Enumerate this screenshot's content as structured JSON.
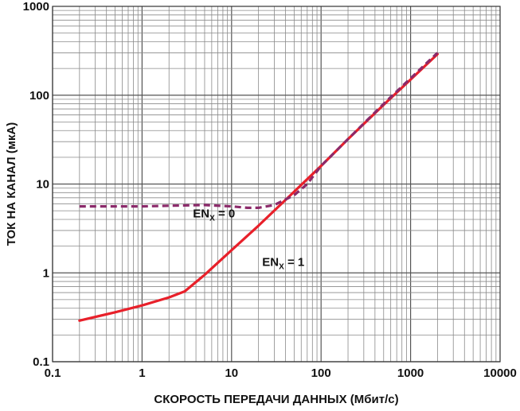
{
  "chart_data": {
    "type": "line",
    "xscale": "log",
    "yscale": "log",
    "xlim": [
      0.1,
      10000
    ],
    "ylim": [
      0.1,
      1000
    ],
    "grid": true,
    "xlabel": "СКОРОСТЬ ПЕРЕДАЧИ ДАННЫХ (Мбит/с)",
    "ylabel": "ТОК НА КАНАЛ (мкА)",
    "xticks": [
      0.1,
      1,
      10,
      100,
      1000,
      10000
    ],
    "xtick_labels": [
      "0.1",
      "1",
      "10",
      "100",
      "1000",
      "10000"
    ],
    "yticks": [
      0.1,
      1,
      10,
      100,
      1000
    ],
    "ytick_labels": [
      "0.1",
      "1",
      "10",
      "100",
      "1000"
    ],
    "series": [
      {
        "name": "EN_X = 1",
        "color": "#e8202a",
        "style": "solid",
        "x": [
          0.2,
          0.5,
          1,
          2,
          3,
          5,
          10,
          20,
          50,
          100,
          200,
          500,
          1000,
          2000
        ],
        "y": [
          0.29,
          0.36,
          0.43,
          0.53,
          0.62,
          0.95,
          1.8,
          3.4,
          8.2,
          16,
          32,
          78,
          150,
          290
        ]
      },
      {
        "name": "EN_X = 0",
        "color": "#8b2a6a",
        "style": "dashed",
        "x": [
          0.2,
          0.5,
          1,
          2,
          5,
          10,
          15,
          20,
          30,
          50,
          70,
          100,
          200,
          500,
          1000,
          2000
        ],
        "y": [
          5.6,
          5.6,
          5.6,
          5.7,
          5.8,
          5.6,
          5.4,
          5.4,
          5.8,
          7.5,
          10,
          16,
          32,
          80,
          155,
          300
        ]
      }
    ],
    "annotations": [
      {
        "main": "EN",
        "sub": "X",
        "rest": " = 0",
        "x": 3.7,
        "y": 4.2
      },
      {
        "main": "EN",
        "sub": "X",
        "rest": " = 1",
        "x": 22,
        "y": 1.2
      }
    ]
  }
}
